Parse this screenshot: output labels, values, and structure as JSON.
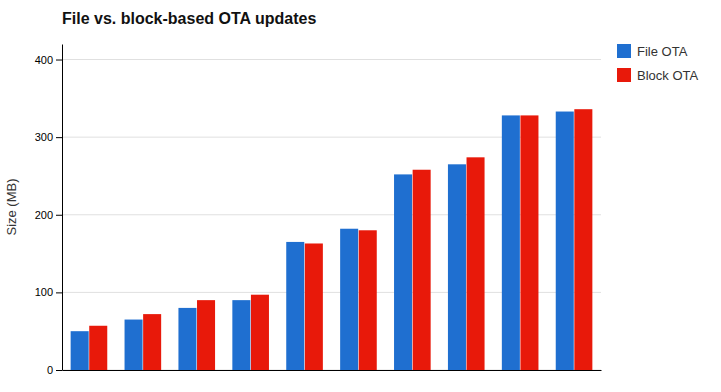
{
  "chart_data": {
    "type": "bar",
    "title": "File vs. block-based OTA updates",
    "y_label": "Size (MB)",
    "categories": [
      null,
      null,
      null,
      null,
      null,
      null,
      null,
      null,
      null,
      null
    ],
    "series": [
      {
        "name": "File OTA",
        "color": "#1F6FD0",
        "values": [
          50,
          65,
          80,
          90,
          165,
          182,
          252,
          265,
          328,
          333
        ]
      },
      {
        "name": "Block OTA",
        "color": "#E8190A",
        "values": [
          57,
          72,
          90,
          97,
          163,
          180,
          258,
          274,
          328,
          336
        ]
      }
    ],
    "ylim": [
      0,
      420
    ],
    "yticks": [
      0,
      100,
      200,
      300,
      400
    ],
    "grid": true,
    "legend": "upper right",
    "tick_labels": "y"
  }
}
